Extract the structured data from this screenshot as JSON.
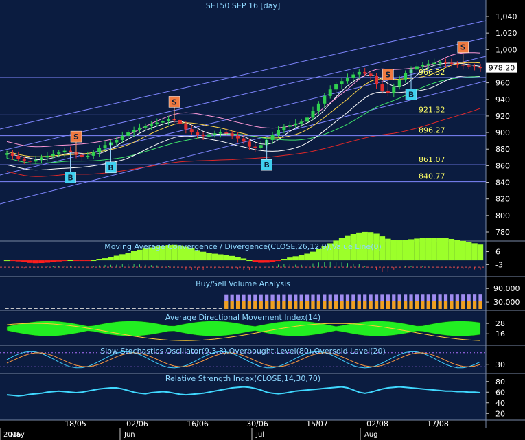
{
  "chart_data": [
    {
      "type": "candlestick",
      "title": "SET50 SEP 16   [day]",
      "y_ticks": [
        780,
        800,
        820,
        840,
        860,
        880,
        900,
        920,
        940,
        960,
        980,
        1000,
        1020,
        1040
      ],
      "ylim": [
        768,
        1052
      ],
      "last_price": "978.20",
      "level_labels": [
        {
          "text": "966.32",
          "value": 966.32
        },
        {
          "text": "921.32",
          "value": 921.32
        },
        {
          "text": "896.27",
          "value": 896.27
        },
        {
          "text": "861.07",
          "value": 861.07
        },
        {
          "text": "840.77",
          "value": 840.77
        }
      ],
      "signals": [
        {
          "label": "S",
          "index": 12
        },
        {
          "label": "B",
          "index": 11
        },
        {
          "label": "B",
          "index": 18
        },
        {
          "label": "S",
          "index": 29
        },
        {
          "label": "B",
          "index": 45
        },
        {
          "label": "S",
          "index": 66
        },
        {
          "label": "B",
          "index": 70
        },
        {
          "label": "S",
          "index": 79
        }
      ],
      "close": [
        875,
        872,
        868,
        866,
        865,
        867,
        870,
        872,
        874,
        876,
        878,
        876,
        873,
        871,
        872,
        876,
        881,
        885,
        888,
        891,
        896,
        900,
        903,
        906,
        908,
        910,
        912,
        914,
        916,
        915,
        910,
        904,
        900,
        897,
        896,
        898,
        899,
        900,
        899,
        896,
        893,
        889,
        883,
        881,
        885,
        891,
        897,
        903,
        907,
        909,
        911,
        913,
        918,
        926,
        935,
        944,
        952,
        958,
        962,
        966,
        970,
        973,
        971,
        968,
        958,
        950,
        948,
        955,
        964,
        972,
        976,
        980,
        982,
        983,
        984,
        985,
        984,
        983,
        982,
        981,
        980,
        979,
        978
      ]
    },
    {
      "type": "bar",
      "title": "Moving Average Convergence / Divergence(CLOSE,26,12,9),Value Line(0)",
      "y_ticks": [
        6,
        -3
      ],
      "ylim": [
        -10,
        12
      ]
    },
    {
      "type": "bar",
      "title": "Buy/Sell Volume Analysis",
      "y_ticks": [
        "90,000",
        "30,000"
      ],
      "ylim": [
        0,
        130000
      ]
    },
    {
      "type": "area",
      "title": "Average Directional Movement Index(14)",
      "y_ticks": [
        28,
        16
      ],
      "ylim": [
        5,
        40
      ]
    },
    {
      "type": "line",
      "title": "Slow Stochastics Oscillator(9,3,3),Overbought Level(80),Oversold Level(20)",
      "y_ticks": [
        30
      ],
      "ylim": [
        0,
        100
      ]
    },
    {
      "type": "line",
      "title": "Relative Strength Index(CLOSE,14,30,70)",
      "y_ticks": [
        80,
        60,
        40,
        20
      ],
      "ylim": [
        10,
        90
      ],
      "values": [
        55,
        54,
        53,
        54,
        56,
        57,
        58,
        60,
        61,
        62,
        61,
        60,
        59,
        60,
        62,
        64,
        66,
        67,
        68,
        68,
        66,
        63,
        60,
        58,
        57,
        59,
        60,
        61,
        60,
        58,
        56,
        55,
        56,
        57,
        58,
        60,
        62,
        64,
        66,
        68,
        69,
        70,
        69,
        67,
        64,
        60,
        58,
        57,
        58,
        60,
        62,
        63,
        64,
        65,
        66,
        67,
        68,
        69,
        70,
        68,
        64,
        60,
        58,
        60,
        63,
        66,
        68,
        69,
        70,
        69,
        68,
        67,
        66,
        65,
        64,
        63,
        62,
        62,
        61,
        61,
        60,
        60,
        59
      ]
    },
    {
      "type": "axis",
      "x_labels": [
        "18/05",
        "02/06",
        "16/06",
        "30/06",
        "15/07",
        "02/08",
        "17/08"
      ],
      "month_labels": [
        "2016",
        "May",
        "Jun",
        "Jul",
        "Aug"
      ]
    }
  ]
}
